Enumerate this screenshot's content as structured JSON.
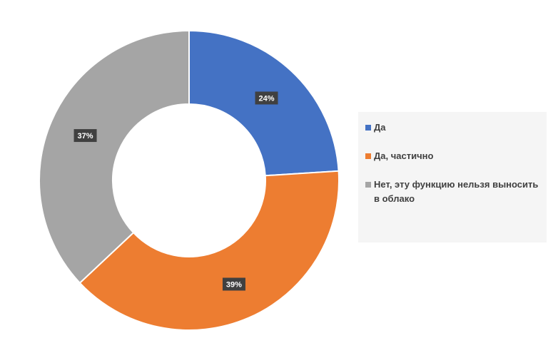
{
  "chart_data": {
    "type": "donut",
    "categories": [
      "Да",
      "Да, частично",
      "Нет, эту функцию нельзя выносить в облако"
    ],
    "values": [
      24,
      39,
      37
    ],
    "value_labels": [
      "24%",
      "39%",
      "37%"
    ],
    "colors": [
      "#4472c4",
      "#ed7d31",
      "#a5a5a5"
    ],
    "legend": "right"
  }
}
